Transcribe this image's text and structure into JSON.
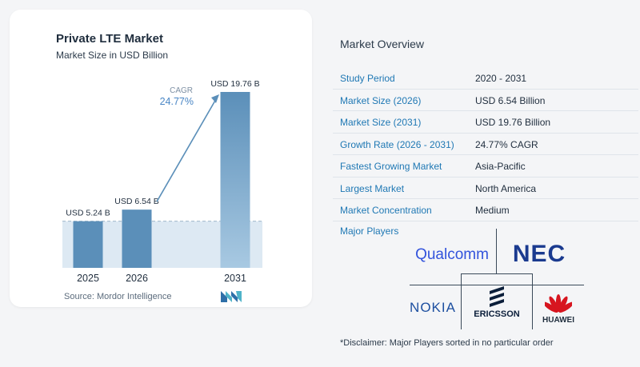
{
  "chart": {
    "title": "Private LTE Market",
    "subtitle": "Market Size in USD Billion",
    "cagr_label": "CAGR",
    "cagr_value": "24.77%",
    "source": "Source:  Mordor Intelligence"
  },
  "chart_data": {
    "type": "bar",
    "categories": [
      "2025",
      "2026",
      "2031"
    ],
    "values": [
      5.24,
      6.54,
      19.76
    ],
    "data_labels": [
      "USD 5.24 B",
      "USD 6.54 B",
      "USD 19.76 B"
    ],
    "title": "Private LTE Market",
    "subtitle": "Market Size in USD Billion",
    "xlabel": "",
    "ylabel": "",
    "ylim": [
      0,
      20
    ],
    "grid": false,
    "annotation": "CAGR 24.77%",
    "colors": {
      "bar": "#5b8fb9",
      "bar_light": "#a8c9e2",
      "baseline_band": "#dde9f3",
      "arrow": "#5b8fb9",
      "cagr": "#4a86c5"
    }
  },
  "overview": {
    "title": "Market Overview",
    "rows": [
      {
        "key": "Study Period",
        "value": "2020 - 2031"
      },
      {
        "key": "Market Size (2026)",
        "value": "USD 6.54 Billion"
      },
      {
        "key": "Market Size (2031)",
        "value": "USD 19.76 Billion"
      },
      {
        "key": "Growth Rate (2026 - 2031)",
        "value": "24.77% CAGR"
      },
      {
        "key": "Fastest Growing Market",
        "value": "Asia-Pacific"
      },
      {
        "key": "Largest Market",
        "value": "North America"
      },
      {
        "key": "Market Concentration",
        "value": "Medium"
      }
    ],
    "players_title": "Major Players",
    "players": [
      "Qualcomm",
      "NEC",
      "NOKIA",
      "ERICSSON",
      "HUAWEI"
    ],
    "disclaimer": "*Disclaimer: Major Players sorted in no particular order"
  }
}
